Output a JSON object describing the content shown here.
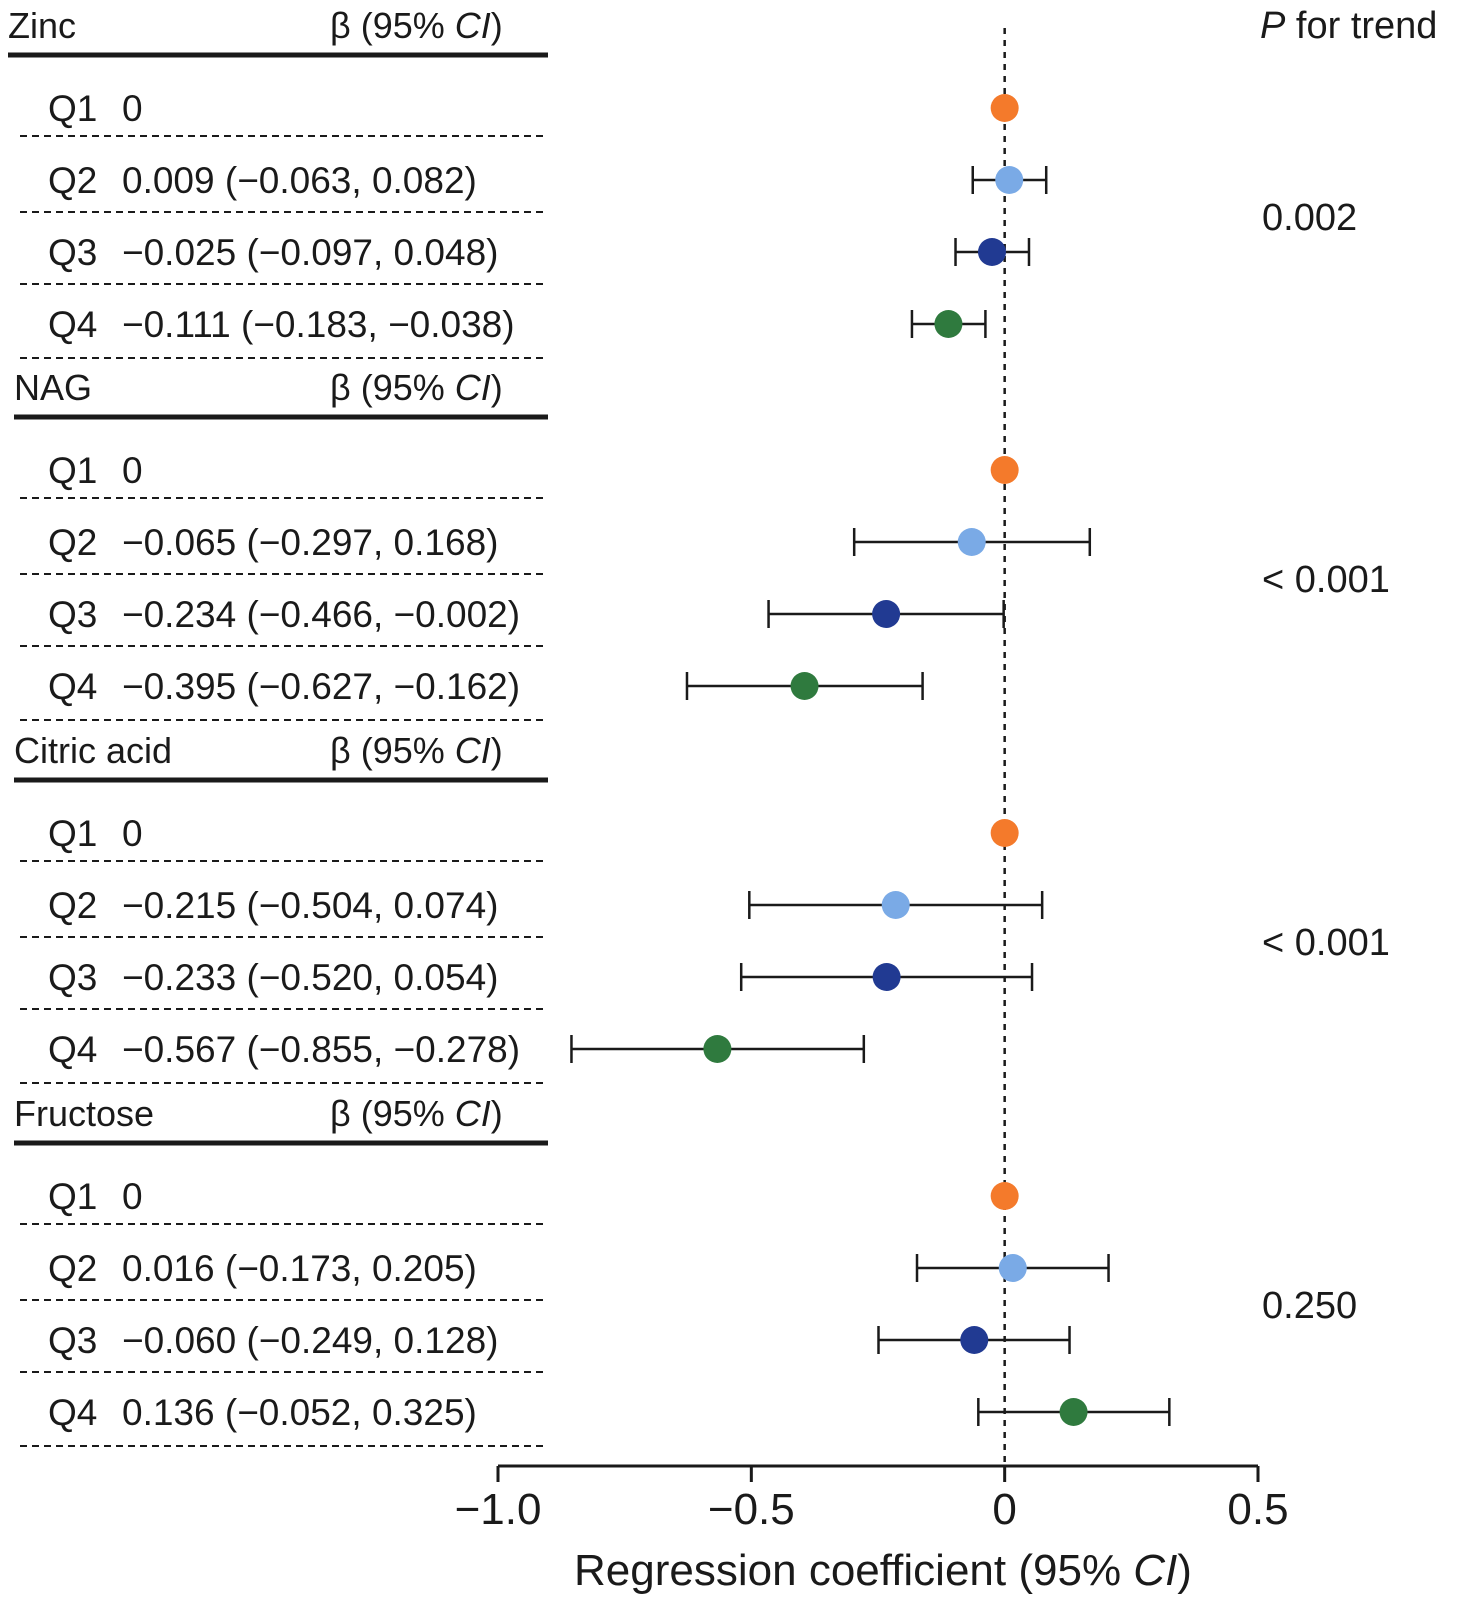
{
  "p_trend_header": {
    "italic": "P",
    "rest": " for trend"
  },
  "beta_header": {
    "pre": "β (95% ",
    "italic": "CI",
    "post": ")"
  },
  "colors": {
    "Q1": "#f47a2b",
    "Q2": "#7aaae6",
    "Q3": "#213a92",
    "Q4": "#2f7a3e",
    "ink": "#1a1a1a"
  },
  "chart_data": {
    "type": "forest",
    "xlim": [
      -1.0,
      0.5
    ],
    "reference_line": 0,
    "xlabel": {
      "pre": "Regression coefficient (95% ",
      "italic": "CI",
      "post": ")"
    },
    "ticks": [
      {
        "value": -1.0,
        "label": "−1.0"
      },
      {
        "value": -0.5,
        "label": "−0.5"
      },
      {
        "value": 0,
        "label": "0"
      },
      {
        "value": 0.5,
        "label": "0.5"
      }
    ],
    "groups": [
      {
        "name": "Zinc",
        "p_trend": "0.002",
        "rows": [
          {
            "q": "Q1",
            "text": "0",
            "est": 0,
            "lo": null,
            "hi": null
          },
          {
            "q": "Q2",
            "text": "0.009 (−0.063, 0.082)",
            "est": 0.009,
            "lo": -0.063,
            "hi": 0.082
          },
          {
            "q": "Q3",
            "text": "−0.025 (−0.097, 0.048)",
            "est": -0.025,
            "lo": -0.097,
            "hi": 0.048
          },
          {
            "q": "Q4",
            "text": "−0.111 (−0.183, −0.038)",
            "est": -0.111,
            "lo": -0.183,
            "hi": -0.038
          }
        ]
      },
      {
        "name": "NAG",
        "p_trend": "< 0.001",
        "rows": [
          {
            "q": "Q1",
            "text": "0",
            "est": 0,
            "lo": null,
            "hi": null
          },
          {
            "q": "Q2",
            "text": "−0.065 (−0.297, 0.168)",
            "est": -0.065,
            "lo": -0.297,
            "hi": 0.168
          },
          {
            "q": "Q3",
            "text": "−0.234 (−0.466, −0.002)",
            "est": -0.234,
            "lo": -0.466,
            "hi": -0.002
          },
          {
            "q": "Q4",
            "text": "−0.395 (−0.627, −0.162)",
            "est": -0.395,
            "lo": -0.627,
            "hi": -0.162
          }
        ]
      },
      {
        "name": "Citric acid",
        "p_trend": "< 0.001",
        "rows": [
          {
            "q": "Q1",
            "text": "0",
            "est": 0,
            "lo": null,
            "hi": null
          },
          {
            "q": "Q2",
            "text": "−0.215 (−0.504, 0.074)",
            "est": -0.215,
            "lo": -0.504,
            "hi": 0.074
          },
          {
            "q": "Q3",
            "text": "−0.233 (−0.520, 0.054)",
            "est": -0.233,
            "lo": -0.52,
            "hi": 0.054
          },
          {
            "q": "Q4",
            "text": "−0.567 (−0.855, −0.278)",
            "est": -0.567,
            "lo": -0.855,
            "hi": -0.278
          }
        ]
      },
      {
        "name": "Fructose",
        "p_trend": "0.250",
        "rows": [
          {
            "q": "Q1",
            "text": "0",
            "est": 0,
            "lo": null,
            "hi": null
          },
          {
            "q": "Q2",
            "text": "0.016 (−0.173, 0.205)",
            "est": 0.016,
            "lo": -0.173,
            "hi": 0.205
          },
          {
            "q": "Q3",
            "text": "−0.060 (−0.249, 0.128)",
            "est": -0.06,
            "lo": -0.249,
            "hi": 0.128
          },
          {
            "q": "Q4",
            "text": "0.136 (−0.052, 0.325)",
            "est": 0.136,
            "lo": -0.052,
            "hi": 0.325
          }
        ]
      }
    ]
  }
}
